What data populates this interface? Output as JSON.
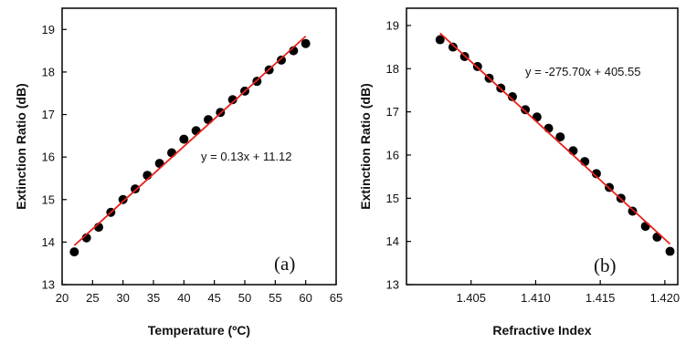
{
  "colors": {
    "marker": "#000000",
    "fit_line": "#e8201a",
    "axis": "#000000"
  },
  "chart_data": [
    {
      "type": "scatter",
      "panel_label": "(a)",
      "xlabel": "Temperature (ºC)",
      "ylabel": "Extinction Ratio (dB)",
      "xlim": [
        20,
        65
      ],
      "ylim": [
        13,
        19.5
      ],
      "xticks": [
        20,
        25,
        30,
        35,
        40,
        45,
        50,
        55,
        60,
        65
      ],
      "xtick_labels": [
        "20",
        "25",
        "30",
        "35",
        "40",
        "45",
        "50",
        "55",
        "60",
        "65"
      ],
      "yticks": [
        13,
        14,
        15,
        16,
        17,
        18,
        19
      ],
      "ytick_labels": [
        "13",
        "14",
        "15",
        "16",
        "17",
        "18",
        "19"
      ],
      "grid": false,
      "equation": "y = 0.13x + 11.12",
      "fit": {
        "x": [
          22,
          60
        ],
        "y": [
          13.92,
          18.84
        ]
      },
      "series": [
        {
          "x": [
            22,
            24,
            26,
            28,
            30,
            32,
            34,
            36,
            38,
            40,
            42,
            44,
            46,
            48,
            50,
            52,
            54,
            56,
            58,
            60
          ],
          "y": [
            13.77,
            14.1,
            14.35,
            14.7,
            15.0,
            15.25,
            15.57,
            15.85,
            16.1,
            16.42,
            16.62,
            16.88,
            17.05,
            17.35,
            17.55,
            17.78,
            18.05,
            18.28,
            18.5,
            18.67
          ]
        }
      ]
    },
    {
      "type": "scatter",
      "panel_label": "(b)",
      "xlabel": "Refractive Index",
      "ylabel": "Extinction Ratio (dB)",
      "xlim": [
        1.4,
        1.421
      ],
      "ylim": [
        13,
        19.4
      ],
      "xticks": [
        1.405,
        1.41,
        1.415,
        1.42
      ],
      "xtick_labels": [
        "1.405",
        "1.410",
        "1.415",
        "1.420"
      ],
      "yticks": [
        13,
        14,
        15,
        16,
        17,
        18,
        19
      ],
      "ytick_labels": [
        "13",
        "14",
        "15",
        "16",
        "17",
        "18",
        "19"
      ],
      "grid": false,
      "equation": "y = -275.70x + 405.55",
      "fit": {
        "x": [
          1.4026,
          1.4204
        ],
        "y": [
          18.82,
          13.94
        ]
      },
      "series": [
        {
          "x": [
            1.4026,
            1.4036,
            1.4045,
            1.4055,
            1.4064,
            1.4073,
            1.4082,
            1.4092,
            1.4101,
            1.411,
            1.4119,
            1.4129,
            1.4138,
            1.4147,
            1.4157,
            1.4166,
            1.4175,
            1.4185,
            1.4194,
            1.4204
          ],
          "y": [
            18.67,
            18.5,
            18.28,
            18.05,
            17.78,
            17.55,
            17.35,
            17.05,
            16.88,
            16.62,
            16.42,
            16.1,
            15.85,
            15.57,
            15.25,
            15.0,
            14.7,
            14.35,
            14.1,
            13.77
          ]
        }
      ]
    }
  ]
}
